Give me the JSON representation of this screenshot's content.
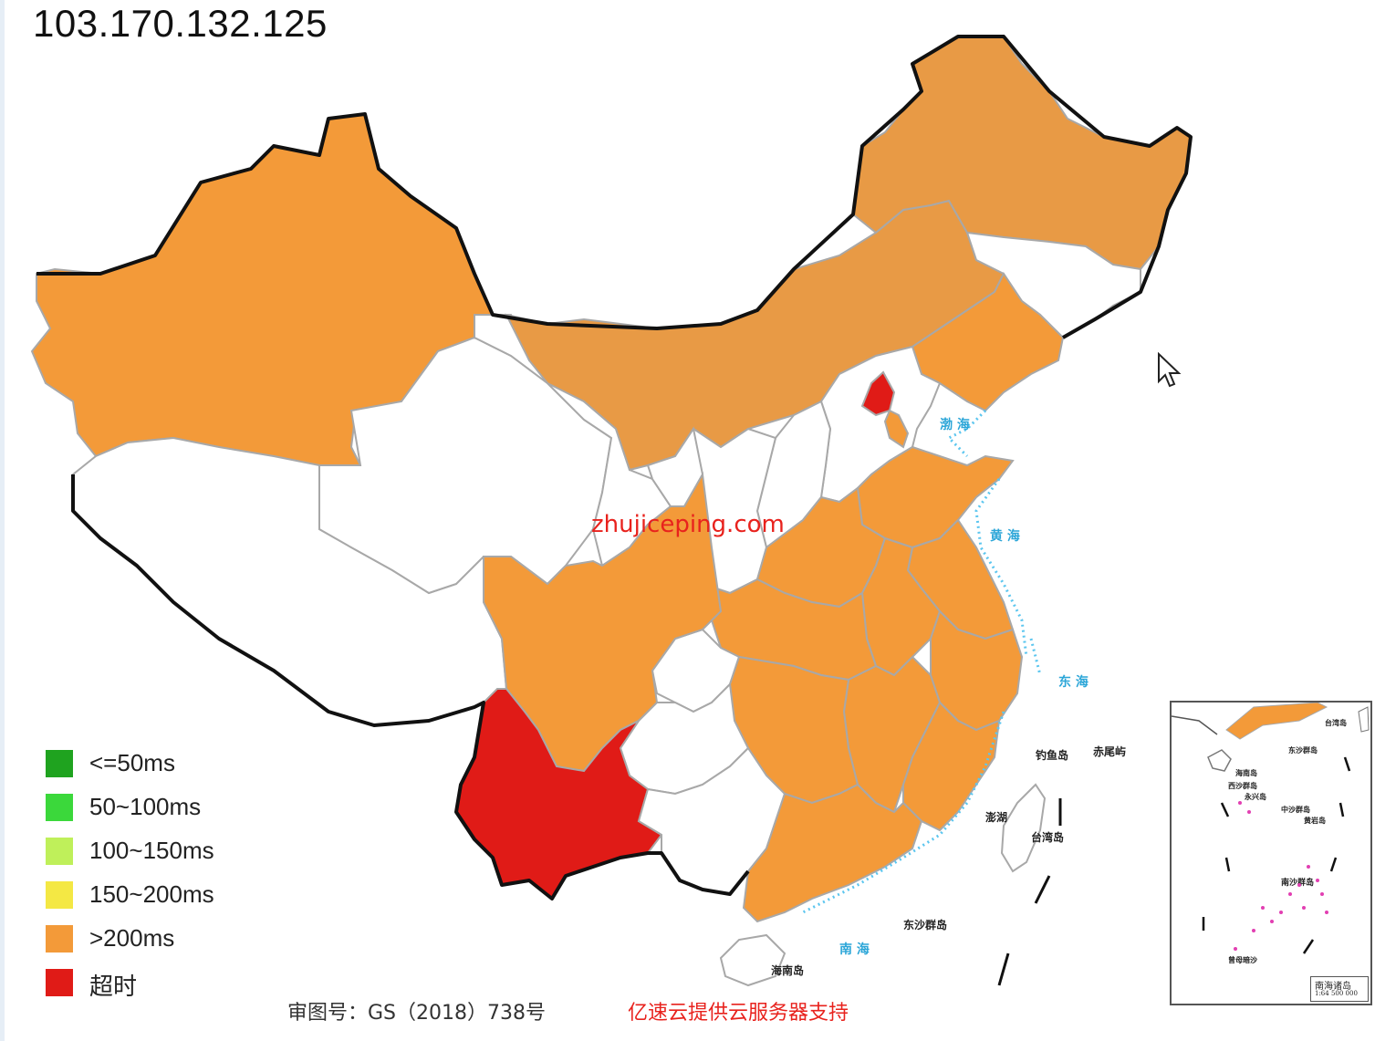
{
  "title": "103.170.132.125",
  "watermark": "zhujiceping.com",
  "legend": [
    {
      "label": "<=50ms",
      "color": "#1fa31f"
    },
    {
      "label": "50~100ms",
      "color": "#3bd83b"
    },
    {
      "label": "100~150ms",
      "color": "#bff05a"
    },
    {
      "label": "150~200ms",
      "color": "#f4e844"
    },
    {
      "label": ">200ms",
      "color": "#f39a39"
    },
    {
      "label": "超时",
      "color": "#e01b17"
    }
  ],
  "footer": {
    "approval": "审图号：GS（2018）738号",
    "sponsor": "亿速云提供云服务器支持"
  },
  "map_labels": {
    "bohai": "渤 海",
    "huanghai": "黄 海",
    "donghai": "东 海",
    "nanhai": "南 海",
    "taiwan": "台湾岛",
    "diaoyu": "钓鱼岛",
    "chiwei": "赤尾屿",
    "dongsha": "东沙群岛",
    "hainan": "海南岛",
    "penghu": "澎湖"
  },
  "inset": {
    "title": "南海诸岛",
    "scale": "1:64 500 000",
    "labels": [
      "台湾岛",
      "东沙群岛",
      "海南岛",
      "西沙群岛",
      "永兴岛",
      "中沙群岛",
      "黄岩岛",
      "南沙群岛",
      "曾母暗沙"
    ]
  },
  "status_colors": {
    "over_200ms": "#f39a39",
    "timeout": "#e01b17",
    "no_data": "#ffffff"
  }
}
